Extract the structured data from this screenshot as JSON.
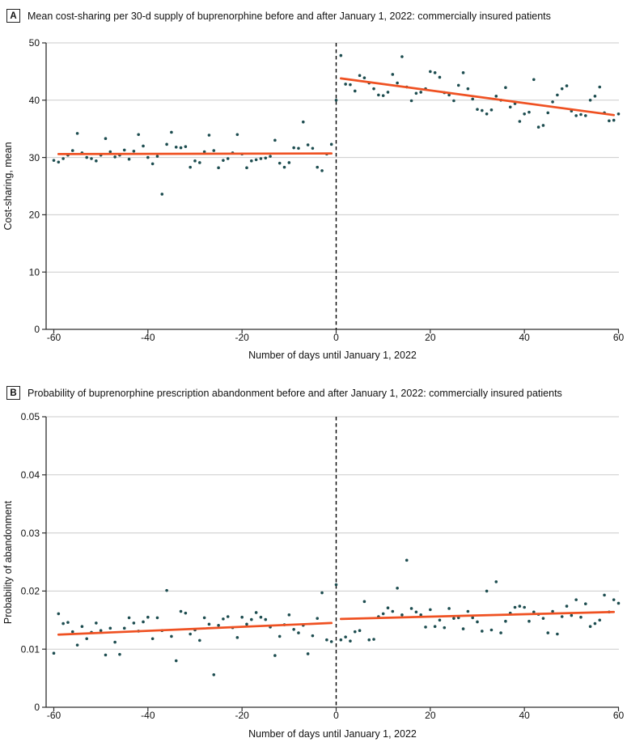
{
  "figure": {
    "background": "#ffffff",
    "colors": {
      "point": "#1d4d50",
      "trend_line": "#ef5122",
      "gridline": "#cbcbcb",
      "axis": "#2e2e2e",
      "reference_line": "#000000",
      "text": "#111111"
    }
  },
  "chart_data": [
    {
      "type": "scatter",
      "panel_label": "A",
      "title": "Mean cost-sharing per 30-d supply of buprenorphine before and after January 1, 2022: commercially insured patients",
      "xlabel": "Number of days until January 1, 2022",
      "ylabel": "Cost-sharing, mean",
      "xlim": [
        -60,
        60
      ],
      "ylim": [
        0,
        50
      ],
      "xticks": [
        -60,
        -40,
        -20,
        0,
        20,
        40,
        60
      ],
      "xtick_labels": [
        "-60",
        "-40",
        "-20",
        "0",
        "20",
        "40",
        "60"
      ],
      "yticks": [
        0,
        10,
        20,
        30,
        40,
        50
      ],
      "ytick_labels": [
        "0",
        "10",
        "20",
        "30",
        "40",
        "50"
      ],
      "grid": "horizontal-light",
      "legend": "none",
      "reference_line_x": 0,
      "series": [
        {
          "name": "before-jan-1-2022",
          "x": [
            -60,
            -59,
            -58,
            -57,
            -56,
            -55,
            -54,
            -53,
            -52,
            -51,
            -50,
            -49,
            -48,
            -47,
            -46,
            -45,
            -44,
            -43,
            -42,
            -41,
            -40,
            -39,
            -38,
            -37,
            -36,
            -35,
            -34,
            -33,
            -32,
            -31,
            -30,
            -29,
            -28,
            -27,
            -26,
            -25,
            -24,
            -23,
            -22,
            -21,
            -20,
            -19,
            -18,
            -17,
            -16,
            -15,
            -14,
            -13,
            -12,
            -11,
            -10,
            -9,
            -8,
            -7,
            -6,
            -5,
            -4,
            -3,
            -2,
            -1
          ],
          "y": [
            29.5,
            29.2,
            29.8,
            30.4,
            31.2,
            34.2,
            30.8,
            30.0,
            29.8,
            29.4,
            30.4,
            33.3,
            31.0,
            30.1,
            30.4,
            31.3,
            29.7,
            31.1,
            34.0,
            32.0,
            30.0,
            28.9,
            30.2,
            23.6,
            32.3,
            34.4,
            31.8,
            31.7,
            31.9,
            28.3,
            29.4,
            29.1,
            31.0,
            33.9,
            31.2,
            28.2,
            29.5,
            29.8,
            30.8,
            34.0,
            30.6,
            28.2,
            29.4,
            29.6,
            29.8,
            29.9,
            30.2,
            33.0,
            29.0,
            28.3,
            29.1,
            31.7,
            31.6,
            36.2,
            32.2,
            31.6,
            28.3,
            27.7,
            30.6,
            32.3
          ]
        },
        {
          "name": "after-jan-1-2022",
          "x": [
            0,
            1,
            2,
            3,
            4,
            5,
            6,
            7,
            8,
            9,
            10,
            11,
            12,
            13,
            14,
            15,
            16,
            17,
            18,
            19,
            20,
            21,
            22,
            23,
            24,
            25,
            26,
            27,
            28,
            29,
            30,
            31,
            32,
            33,
            34,
            35,
            36,
            37,
            38,
            39,
            40,
            41,
            42,
            43,
            44,
            45,
            46,
            47,
            48,
            49,
            50,
            51,
            52,
            53,
            54,
            55,
            56,
            57,
            58,
            59,
            60
          ],
          "y": [
            40.0,
            47.8,
            42.8,
            42.7,
            41.6,
            44.3,
            43.9,
            43.0,
            42.0,
            40.9,
            40.8,
            41.4,
            44.5,
            43.0,
            47.6,
            42.3,
            39.9,
            41.2,
            41.4,
            42.0,
            45.0,
            44.8,
            44.0,
            41.3,
            40.9,
            39.9,
            42.6,
            44.8,
            42.0,
            40.2,
            38.4,
            38.2,
            37.6,
            38.3,
            40.7,
            40.0,
            42.2,
            38.8,
            39.4,
            36.3,
            37.6,
            37.9,
            43.6,
            35.3,
            35.6,
            37.8,
            39.7,
            40.9,
            42.0,
            42.5,
            38.1,
            37.3,
            37.5,
            37.3,
            40.0,
            40.7,
            42.3,
            37.8,
            36.4,
            36.5,
            37.6
          ]
        }
      ],
      "trend_lines": [
        {
          "name": "before-trend",
          "x1": -59,
          "y1": 30.6,
          "x2": -1,
          "y2": 30.7
        },
        {
          "name": "after-trend",
          "x1": 1,
          "y1": 43.8,
          "x2": 59,
          "y2": 37.4
        }
      ]
    },
    {
      "type": "scatter",
      "panel_label": "B",
      "title": "Probability of buprenorphine prescription abandonment before and after January 1, 2022: commercially insured patients",
      "xlabel": "Number of days until January 1, 2022",
      "ylabel": "Probability of abandonment",
      "xlim": [
        -60,
        60
      ],
      "ylim": [
        0,
        0.05
      ],
      "xticks": [
        -60,
        -40,
        -20,
        0,
        20,
        40,
        60
      ],
      "xtick_labels": [
        "-60",
        "-40",
        "-20",
        "0",
        "20",
        "40",
        "60"
      ],
      "yticks": [
        0,
        0.01,
        0.02,
        0.03,
        0.04,
        0.05
      ],
      "ytick_labels": [
        "0",
        "0.01",
        "0.02",
        "0.03",
        "0.04",
        "0.05"
      ],
      "grid": "horizontal-light",
      "legend": "none",
      "reference_line_x": 0,
      "series": [
        {
          "name": "before-jan-1-2022",
          "x": [
            -60,
            -59,
            -58,
            -57,
            -56,
            -55,
            -54,
            -53,
            -52,
            -51,
            -50,
            -49,
            -48,
            -47,
            -46,
            -45,
            -44,
            -43,
            -42,
            -41,
            -40,
            -39,
            -38,
            -37,
            -36,
            -35,
            -34,
            -33,
            -32,
            -31,
            -30,
            -29,
            -28,
            -27,
            -26,
            -25,
            -24,
            -23,
            -22,
            -21,
            -20,
            -19,
            -18,
            -17,
            -16,
            -15,
            -14,
            -13,
            -12,
            -11,
            -10,
            -9,
            -8,
            -7,
            -6,
            -5,
            -4,
            -3,
            -2,
            -1
          ],
          "y": [
            0.0093,
            0.0161,
            0.0144,
            0.0146,
            0.013,
            0.0107,
            0.0139,
            0.0118,
            0.0129,
            0.0145,
            0.0132,
            0.009,
            0.0136,
            0.0112,
            0.0091,
            0.0136,
            0.0154,
            0.0145,
            0.0131,
            0.0147,
            0.0155,
            0.0118,
            0.0154,
            0.0132,
            0.0201,
            0.0122,
            0.008,
            0.0165,
            0.0162,
            0.0126,
            0.0133,
            0.0115,
            0.0154,
            0.0143,
            0.0056,
            0.0141,
            0.0152,
            0.0156,
            0.0137,
            0.012,
            0.0155,
            0.0143,
            0.0151,
            0.0163,
            0.0155,
            0.0151,
            0.0138,
            0.0089,
            0.0122,
            0.0142,
            0.0159,
            0.0134,
            0.0128,
            0.0141,
            0.0092,
            0.0123,
            0.0153,
            0.0197,
            0.0116,
            0.0113
          ]
        },
        {
          "name": "after-jan-1-2022",
          "x": [
            0,
            1,
            2,
            3,
            4,
            5,
            6,
            7,
            8,
            9,
            10,
            11,
            12,
            13,
            14,
            15,
            16,
            17,
            18,
            19,
            20,
            21,
            22,
            23,
            24,
            25,
            26,
            27,
            28,
            29,
            30,
            31,
            32,
            33,
            34,
            35,
            36,
            37,
            38,
            39,
            40,
            41,
            42,
            43,
            44,
            45,
            46,
            47,
            48,
            49,
            50,
            51,
            52,
            53,
            54,
            55,
            56,
            57,
            58,
            59,
            60
          ],
          "y": [
            0.0211,
            0.0116,
            0.0121,
            0.0114,
            0.013,
            0.0132,
            0.0182,
            0.0116,
            0.0117,
            0.0156,
            0.0161,
            0.0171,
            0.0165,
            0.0205,
            0.0159,
            0.0253,
            0.017,
            0.0164,
            0.0159,
            0.0138,
            0.0168,
            0.0139,
            0.015,
            0.0137,
            0.017,
            0.0153,
            0.0154,
            0.0135,
            0.0165,
            0.0154,
            0.0147,
            0.0131,
            0.02,
            0.0133,
            0.0216,
            0.0128,
            0.0148,
            0.0162,
            0.0172,
            0.0174,
            0.0172,
            0.0148,
            0.0164,
            0.016,
            0.0153,
            0.0128,
            0.0165,
            0.0126,
            0.0156,
            0.0174,
            0.0158,
            0.0185,
            0.0155,
            0.0178,
            0.0139,
            0.0144,
            0.015,
            0.0193,
            0.0164,
            0.0185,
            0.0179
          ]
        }
      ],
      "trend_lines": [
        {
          "name": "before-trend",
          "x1": -59,
          "y1": 0.0125,
          "x2": -1,
          "y2": 0.0145
        },
        {
          "name": "after-trend",
          "x1": 1,
          "y1": 0.0152,
          "x2": 59,
          "y2": 0.0164
        }
      ]
    }
  ]
}
